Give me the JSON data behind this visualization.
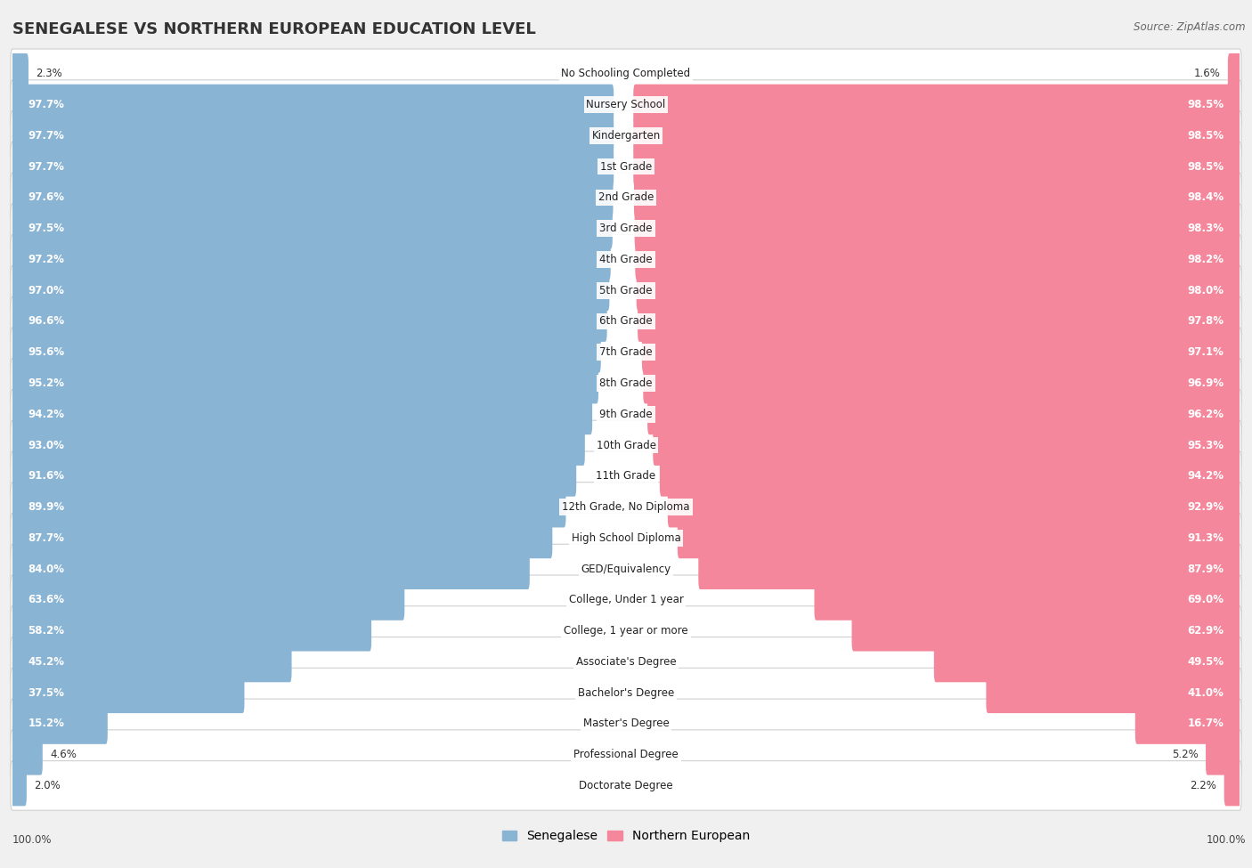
{
  "title": "SENEGALESE VS NORTHERN EUROPEAN EDUCATION LEVEL",
  "source": "Source: ZipAtlas.com",
  "categories": [
    "No Schooling Completed",
    "Nursery School",
    "Kindergarten",
    "1st Grade",
    "2nd Grade",
    "3rd Grade",
    "4th Grade",
    "5th Grade",
    "6th Grade",
    "7th Grade",
    "8th Grade",
    "9th Grade",
    "10th Grade",
    "11th Grade",
    "12th Grade, No Diploma",
    "High School Diploma",
    "GED/Equivalency",
    "College, Under 1 year",
    "College, 1 year or more",
    "Associate's Degree",
    "Bachelor's Degree",
    "Master's Degree",
    "Professional Degree",
    "Doctorate Degree"
  ],
  "senegalese": [
    2.3,
    97.7,
    97.7,
    97.7,
    97.6,
    97.5,
    97.2,
    97.0,
    96.6,
    95.6,
    95.2,
    94.2,
    93.0,
    91.6,
    89.9,
    87.7,
    84.0,
    63.6,
    58.2,
    45.2,
    37.5,
    15.2,
    4.6,
    2.0
  ],
  "northern_european": [
    1.6,
    98.5,
    98.5,
    98.5,
    98.4,
    98.3,
    98.2,
    98.0,
    97.8,
    97.1,
    96.9,
    96.2,
    95.3,
    94.2,
    92.9,
    91.3,
    87.9,
    69.0,
    62.9,
    49.5,
    41.0,
    16.7,
    5.2,
    2.2
  ],
  "senegalese_color": "#8ab4d4",
  "northern_european_color": "#f4879b",
  "background_color": "#f0f0f0",
  "title_fontsize": 13,
  "label_fontsize": 8.5,
  "value_fontsize": 8.5,
  "legend_fontsize": 10
}
